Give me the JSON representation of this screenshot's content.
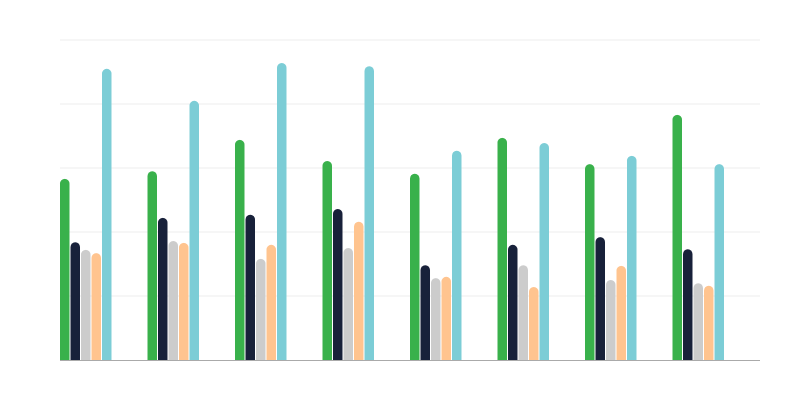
{
  "chart_data": {
    "type": "bar",
    "title": "",
    "xlabel": "",
    "ylabel": "",
    "ylim": [
      0,
      5
    ],
    "grid": true,
    "legend": "none",
    "categories": [
      "",
      "",
      "",
      "",
      "",
      "",
      "",
      ""
    ],
    "series": [
      {
        "color": "#39b14b",
        "values": [
          2.83,
          2.95,
          3.44,
          3.11,
          2.91,
          3.47,
          3.06,
          3.83
        ]
      },
      {
        "color": "#18213a",
        "values": [
          1.84,
          2.22,
          2.27,
          2.36,
          1.48,
          1.8,
          1.92,
          1.73
        ]
      },
      {
        "color": "#cccccc",
        "values": [
          1.72,
          1.86,
          1.58,
          1.75,
          1.28,
          1.48,
          1.25,
          1.2
        ]
      },
      {
        "color": "#ffc48f",
        "values": [
          1.67,
          1.83,
          1.8,
          2.16,
          1.3,
          1.14,
          1.47,
          1.16
        ]
      },
      {
        "color": "#7ccdd6",
        "values": [
          4.55,
          4.05,
          4.64,
          4.59,
          3.27,
          3.39,
          3.19,
          3.06
        ]
      }
    ]
  }
}
